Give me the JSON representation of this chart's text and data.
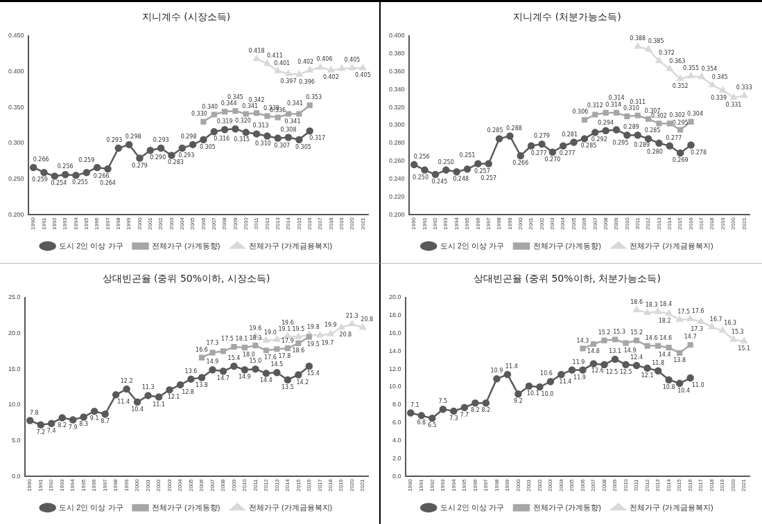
{
  "chart_data": [
    {
      "type": "line",
      "title": "지니계수 (시장소득)",
      "categories": [
        "1990",
        "1991",
        "1992",
        "1993",
        "1994",
        "1995",
        "1996",
        "1997",
        "1998",
        "1999",
        "2000",
        "2001",
        "2002",
        "2003",
        "2004",
        "2005",
        "2006",
        "2007",
        "2008",
        "2009",
        "2010",
        "2011",
        "2012",
        "2013",
        "2014",
        "2015",
        "2016",
        "2017",
        "2018",
        "2019",
        "2020",
        "2021"
      ],
      "ylim": [
        0.2,
        0.45
      ],
      "yticks": [
        {
          "value": 0.2,
          "label": "0.200"
        },
        {
          "value": 0.25,
          "label": "0.250"
        },
        {
          "value": 0.3,
          "label": "0.300"
        },
        {
          "value": 0.35,
          "label": "0.350"
        },
        {
          "value": 0.4,
          "label": "0.400"
        },
        {
          "value": 0.45,
          "label": "0.450"
        }
      ],
      "legend": "bottom",
      "grid": false,
      "series": [
        {
          "name": "도시 2인 이상 가구",
          "color": "#595959",
          "marker": "circle",
          "values": [
            0.266,
            0.259,
            0.254,
            0.256,
            0.255,
            0.259,
            0.266,
            0.264,
            0.293,
            0.298,
            0.279,
            0.29,
            0.293,
            0.283,
            0.293,
            0.298,
            0.305,
            0.316,
            0.319,
            0.32,
            0.315,
            0.313,
            0.31,
            0.307,
            0.308,
            0.305,
            0.317,
            null,
            null,
            null,
            null,
            null
          ],
          "value_labels": [
            "0.266",
            "0.259",
            "0.254",
            "0.256",
            "0.255",
            "0.259",
            "0.266",
            "0.264",
            "0.293",
            "0.298",
            "0.279",
            "0.290",
            "0.293",
            "0.283",
            "0.293",
            "0.298",
            "0.305",
            "0.316",
            "0.319",
            "0.320",
            "0.315",
            "0.313",
            "0.310",
            "0.307",
            "0.308",
            "0.305",
            "0.317",
            null,
            null,
            null,
            null,
            null
          ]
        },
        {
          "name": "전체가구 (가계동향)",
          "color": "#a6a6a6",
          "marker": "square",
          "values": [
            null,
            null,
            null,
            null,
            null,
            null,
            null,
            null,
            null,
            null,
            null,
            null,
            null,
            null,
            null,
            null,
            0.33,
            0.34,
            0.344,
            0.345,
            0.341,
            0.342,
            0.338,
            0.336,
            0.341,
            0.341,
            0.353,
            null,
            null,
            null,
            null,
            null
          ],
          "value_labels": [
            null,
            null,
            null,
            null,
            null,
            null,
            null,
            null,
            null,
            null,
            null,
            null,
            null,
            null,
            null,
            null,
            "0.330",
            "0.340",
            "0.344",
            "0.345",
            "0.341",
            "0.342",
            "0.338",
            "0.336",
            "0.341",
            "0.341",
            "0.353",
            null,
            null,
            null,
            null,
            null
          ]
        },
        {
          "name": "전체가구 (가계금융복지)",
          "color": "#d9d9d9",
          "marker": "triangle",
          "values": [
            null,
            null,
            null,
            null,
            null,
            null,
            null,
            null,
            null,
            null,
            null,
            null,
            null,
            null,
            null,
            null,
            null,
            null,
            null,
            null,
            null,
            0.418,
            0.411,
            0.401,
            0.397,
            0.396,
            0.402,
            0.406,
            0.402,
            0.404,
            0.405,
            0.405
          ],
          "value_labels": [
            null,
            null,
            null,
            null,
            null,
            null,
            null,
            null,
            null,
            null,
            null,
            null,
            null,
            null,
            null,
            null,
            null,
            null,
            null,
            null,
            null,
            "0.418",
            "0.411",
            "0.401",
            "0.397",
            "0.396",
            "0.402",
            "0.406",
            "0.402",
            null,
            "0.405",
            "0.405"
          ]
        }
      ]
    },
    {
      "type": "line",
      "title": "지니계수 (처분가능소득)",
      "categories": [
        "1990",
        "1991",
        "1992",
        "1993",
        "1994",
        "1995",
        "1996",
        "1997",
        "1998",
        "1999",
        "2000",
        "2001",
        "2002",
        "2003",
        "2004",
        "2005",
        "2006",
        "2007",
        "2008",
        "2009",
        "2010",
        "2011",
        "2012",
        "2013",
        "2014",
        "2015",
        "2016",
        "2017",
        "2018",
        "2019",
        "2020",
        "2021"
      ],
      "ylim": [
        0.2,
        0.4
      ],
      "yticks": [
        {
          "value": 0.2,
          "label": "0.200"
        },
        {
          "value": 0.22,
          "label": "0.220"
        },
        {
          "value": 0.24,
          "label": "0.240"
        },
        {
          "value": 0.26,
          "label": "0.260"
        },
        {
          "value": 0.28,
          "label": "0.280"
        },
        {
          "value": 0.3,
          "label": "0.300"
        },
        {
          "value": 0.32,
          "label": "0.320"
        },
        {
          "value": 0.34,
          "label": "0.340"
        },
        {
          "value": 0.36,
          "label": "0.360"
        },
        {
          "value": 0.38,
          "label": "0.380"
        },
        {
          "value": 0.4,
          "label": "0.400"
        }
      ],
      "legend": "bottom",
      "grid": false,
      "series": [
        {
          "name": "도시 2인 이상 가구",
          "color": "#595959",
          "marker": "circle",
          "values": [
            0.256,
            0.25,
            0.245,
            0.25,
            0.248,
            0.251,
            0.257,
            0.257,
            0.285,
            0.288,
            0.266,
            0.277,
            0.279,
            0.27,
            0.277,
            0.281,
            0.285,
            0.292,
            0.294,
            0.295,
            0.289,
            0.289,
            0.285,
            0.28,
            0.277,
            0.269,
            0.278,
            null,
            null,
            null,
            null,
            null
          ],
          "value_labels": [
            "0.256",
            "0.250",
            "0.245",
            "0.250",
            "0.248",
            "0.251",
            "0.257",
            "0.257",
            "0.285",
            "0.288",
            "0.266",
            "0.277",
            "0.279",
            "0.270",
            "0.277",
            "0.281",
            "0.285",
            "0.292",
            "0.294",
            "0.295",
            "0.289",
            "0.289",
            "0.285",
            "0.280",
            "0.277",
            "0.269",
            "0.278",
            null,
            null,
            null,
            null,
            null
          ]
        },
        {
          "name": "전체가구 (가계동향)",
          "color": "#a6a6a6",
          "marker": "square",
          "values": [
            null,
            null,
            null,
            null,
            null,
            null,
            null,
            null,
            null,
            null,
            null,
            null,
            null,
            null,
            null,
            null,
            0.306,
            0.312,
            0.314,
            0.314,
            0.31,
            0.311,
            0.307,
            0.302,
            0.302,
            0.295,
            0.304,
            null,
            null,
            null,
            null,
            null
          ],
          "value_labels": [
            null,
            null,
            null,
            null,
            null,
            null,
            null,
            null,
            null,
            null,
            null,
            null,
            null,
            null,
            null,
            null,
            "0.306",
            "0.312",
            "0.314",
            "0.314",
            "0.310",
            "0.311",
            "0.307",
            "0.302",
            "0.302",
            "0.295",
            "0.304",
            null,
            null,
            null,
            null,
            null
          ]
        },
        {
          "name": "전체가구 (가계금융복지)",
          "color": "#d9d9d9",
          "marker": "triangle",
          "values": [
            null,
            null,
            null,
            null,
            null,
            null,
            null,
            null,
            null,
            null,
            null,
            null,
            null,
            null,
            null,
            null,
            null,
            null,
            null,
            null,
            null,
            0.388,
            0.385,
            0.372,
            0.363,
            0.352,
            0.355,
            0.354,
            0.345,
            0.339,
            0.331,
            0.333
          ],
          "value_labels": [
            null,
            null,
            null,
            null,
            null,
            null,
            null,
            null,
            null,
            null,
            null,
            null,
            null,
            null,
            null,
            null,
            null,
            null,
            null,
            null,
            null,
            "0.388",
            "0.385",
            "0.372",
            "0.363",
            "0.352",
            "0.355",
            "0.354",
            "0.345",
            "0.339",
            "0.331",
            "0.333"
          ]
        }
      ]
    },
    {
      "type": "line",
      "title": "상대빈곤율 (중위 50%이하, 시장소득)",
      "categories": [
        "1990",
        "1991",
        "1992",
        "1993",
        "1994",
        "1995",
        "1996",
        "1997",
        "1998",
        "1999",
        "2000",
        "2001",
        "2002",
        "2003",
        "2004",
        "2005",
        "2006",
        "2007",
        "2008",
        "2009",
        "2010",
        "2011",
        "2012",
        "2013",
        "2014",
        "2015",
        "2016",
        "2017",
        "2018",
        "2019",
        "2020",
        "2021"
      ],
      "ylim": [
        0,
        25
      ],
      "yticks": [
        {
          "value": 0,
          "label": "0.0"
        },
        {
          "value": 5,
          "label": "5.0"
        },
        {
          "value": 10,
          "label": "10.0"
        },
        {
          "value": 15,
          "label": "15.0"
        },
        {
          "value": 20,
          "label": "20.0"
        },
        {
          "value": 25,
          "label": "25.0"
        }
      ],
      "legend": "bottom",
      "grid": false,
      "series": [
        {
          "name": "도시 2인 이상 가구",
          "color": "#595959",
          "marker": "circle",
          "values": [
            7.8,
            7.2,
            7.4,
            8.2,
            7.9,
            8.3,
            9.1,
            8.7,
            11.4,
            12.2,
            10.4,
            11.3,
            11.1,
            12.1,
            12.8,
            13.6,
            13.8,
            14.9,
            14.7,
            15.4,
            14.9,
            15.0,
            14.4,
            14.5,
            13.5,
            14.2,
            15.4,
            null,
            null,
            null,
            null,
            null
          ],
          "value_labels": [
            "7.8",
            "7.2",
            "7.4",
            "8.2",
            "7.9",
            "8.3",
            "9.1",
            "8.7",
            "11.4",
            "12.2",
            "10.4",
            "11.3",
            "11.1",
            "12.1",
            "12.8",
            "13.6",
            "13.8",
            "14.9",
            "14.7",
            "15.4",
            "14.9",
            "15.0",
            "14.4",
            "14.5",
            "13.5",
            "14.2",
            "15.4",
            null,
            null,
            null,
            null,
            null
          ]
        },
        {
          "name": "전체가구 (가계동향)",
          "color": "#a6a6a6",
          "marker": "square",
          "values": [
            null,
            null,
            null,
            null,
            null,
            null,
            null,
            null,
            null,
            null,
            null,
            null,
            null,
            null,
            null,
            null,
            16.6,
            17.3,
            17.5,
            18.1,
            18.0,
            18.3,
            17.6,
            17.8,
            17.9,
            18.6,
            19.5,
            null,
            null,
            null,
            null,
            null
          ],
          "value_labels": [
            null,
            null,
            null,
            null,
            null,
            null,
            null,
            null,
            null,
            null,
            null,
            null,
            null,
            null,
            null,
            null,
            "16.6",
            "17.3",
            "17.5",
            "18.1",
            "18.0",
            "18.3",
            "17.6",
            "17.8",
            "17.9",
            "18.6",
            "19.5",
            null,
            null,
            null,
            null,
            null
          ]
        },
        {
          "name": "전체가구 (가계금융복지)",
          "color": "#d9d9d9",
          "marker": "triangle",
          "values": [
            null,
            null,
            null,
            null,
            null,
            null,
            null,
            null,
            null,
            null,
            null,
            null,
            null,
            null,
            null,
            null,
            null,
            null,
            null,
            null,
            null,
            19.6,
            19.0,
            19.1,
            19.6,
            19.5,
            19.8,
            19.7,
            19.9,
            20.8,
            21.3,
            20.8
          ],
          "value_labels": [
            null,
            null,
            null,
            null,
            null,
            null,
            null,
            null,
            null,
            null,
            null,
            null,
            null,
            null,
            null,
            null,
            null,
            null,
            null,
            null,
            null,
            "19.6",
            "19.0",
            "19.1",
            "19.6",
            "19.5",
            "19.8",
            "19.7",
            "19.9",
            "20.8",
            "21.3",
            "20.8"
          ]
        }
      ]
    },
    {
      "type": "line",
      "title": "상대빈곤율 (중위 50%이하, 처분가능소득)",
      "categories": [
        "1990",
        "1991",
        "1992",
        "1993",
        "1994",
        "1995",
        "1996",
        "1997",
        "1998",
        "1999",
        "2000",
        "2001",
        "2002",
        "2003",
        "2004",
        "2005",
        "2006",
        "2007",
        "2008",
        "2009",
        "2010",
        "2011",
        "2012",
        "2013",
        "2014",
        "2015",
        "2016",
        "2017",
        "2018",
        "2019",
        "2020",
        "2021"
      ],
      "ylim": [
        0,
        20
      ],
      "yticks": [
        {
          "value": 0,
          "label": "0.0"
        },
        {
          "value": 2,
          "label": "2.0"
        },
        {
          "value": 4,
          "label": "4.0"
        },
        {
          "value": 6,
          "label": "6.0"
        },
        {
          "value": 8,
          "label": "8.0"
        },
        {
          "value": 10,
          "label": "10.0"
        },
        {
          "value": 12,
          "label": "12.0"
        },
        {
          "value": 14,
          "label": "14.0"
        },
        {
          "value": 16,
          "label": "16.0"
        },
        {
          "value": 18,
          "label": "18.0"
        },
        {
          "value": 20,
          "label": "20.0"
        }
      ],
      "legend": "bottom",
      "grid": false,
      "series": [
        {
          "name": "도시 2인 이상 가구",
          "color": "#595959",
          "marker": "circle",
          "values": [
            7.1,
            6.8,
            6.5,
            7.5,
            7.3,
            7.7,
            8.2,
            8.2,
            10.9,
            11.4,
            9.2,
            10.1,
            10.0,
            10.6,
            11.4,
            11.9,
            11.9,
            12.6,
            12.5,
            13.1,
            12.5,
            12.4,
            12.1,
            11.8,
            10.8,
            10.4,
            11.0,
            null,
            null,
            null,
            null,
            null
          ],
          "value_labels": [
            "7.1",
            "6.8",
            "6.5",
            "7.5",
            "7.3",
            "7.7",
            "8.2",
            "8.2",
            "10.9",
            "11.4",
            "9.2",
            "10.1",
            "10.0",
            "10.6",
            "11.4",
            "11.9",
            "11.9",
            "12.6",
            "12.5",
            "13.1",
            "12.5",
            "12.4",
            "12.1",
            "11.8",
            "10.8",
            "10.4",
            "11.0",
            null,
            null,
            null,
            null,
            null
          ]
        },
        {
          "name": "전체가구 (가계동향)",
          "color": "#a6a6a6",
          "marker": "square",
          "values": [
            null,
            null,
            null,
            null,
            null,
            null,
            null,
            null,
            null,
            null,
            null,
            null,
            null,
            null,
            null,
            null,
            14.3,
            14.8,
            15.2,
            15.3,
            14.9,
            15.2,
            14.6,
            14.6,
            14.4,
            13.8,
            14.7,
            null,
            null,
            null,
            null,
            null
          ],
          "value_labels": [
            null,
            null,
            null,
            null,
            null,
            null,
            null,
            null,
            null,
            null,
            null,
            null,
            null,
            null,
            null,
            null,
            "14.3",
            "14.8",
            "15.2",
            "15.3",
            "14.9",
            "15.2",
            "14.6",
            "14.6",
            "14.4",
            "13.8",
            "14.7",
            null,
            null,
            null,
            null,
            null
          ]
        },
        {
          "name": "전체가구 (가계금융복지)",
          "color": "#d9d9d9",
          "marker": "triangle",
          "values": [
            null,
            null,
            null,
            null,
            null,
            null,
            null,
            null,
            null,
            null,
            null,
            null,
            null,
            null,
            null,
            null,
            null,
            null,
            null,
            null,
            null,
            18.6,
            18.3,
            18.4,
            18.2,
            17.5,
            17.6,
            17.3,
            16.7,
            16.3,
            15.3,
            15.1
          ],
          "value_labels": [
            null,
            null,
            null,
            null,
            null,
            null,
            null,
            null,
            null,
            null,
            null,
            null,
            null,
            null,
            null,
            null,
            null,
            null,
            null,
            null,
            null,
            "18.6",
            "18.3",
            "18.4",
            "18.2",
            "17.5",
            "17.6",
            "17.3",
            "16.7",
            "16.3",
            "15.3",
            "15.1"
          ]
        }
      ]
    }
  ]
}
